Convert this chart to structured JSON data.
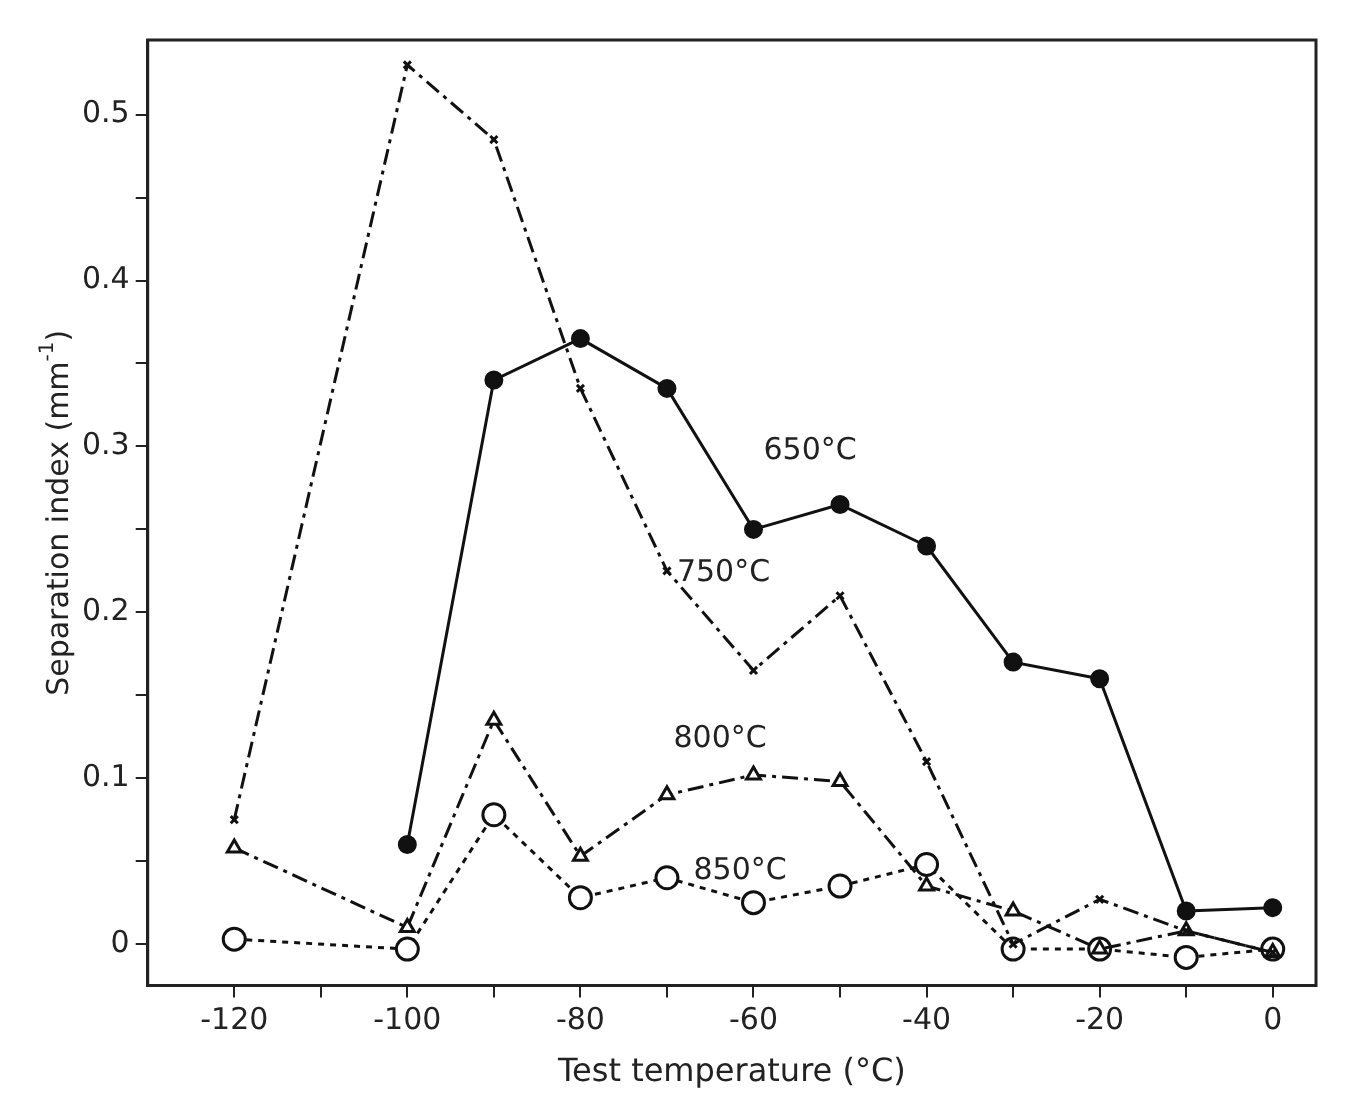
{
  "chart_data": {
    "type": "line",
    "xlabel": "Test temperature (°C)",
    "ylabel": "Separation index (mm$^{-1}$)",
    "x": [
      -120,
      -100,
      -90,
      -80,
      -70,
      -60,
      -50,
      -40,
      -30,
      -20,
      -10,
      0
    ],
    "series": [
      {
        "name": "650°C",
        "color": "#111111",
        "marker": "circle",
        "line_style": "solid",
        "values": [
          null,
          0.06,
          0.34,
          0.365,
          0.335,
          0.25,
          0.265,
          0.24,
          0.17,
          0.16,
          0.02,
          0.022
        ]
      },
      {
        "name": "750°C",
        "color": "#111111",
        "marker": "cross",
        "line_style": "dashed",
        "values": [
          0.075,
          0.53,
          0.485,
          0.335,
          0.225,
          0.165,
          0.21,
          0.11,
          0,
          0.027,
          0.008,
          -0.005
        ]
      },
      {
        "name": "800°C",
        "color": "#111111",
        "marker": "triangle",
        "line_style": "dashed",
        "values": [
          0.058,
          0.01,
          0.135,
          0.053,
          0.09,
          0.102,
          0.098,
          0.035,
          0.02,
          -0.003,
          0.008,
          -0.005
        ]
      },
      {
        "name": "850°C",
        "color": "#111111",
        "marker": "circle",
        "line_style": "dotted",
        "values": [
          0.003,
          -0.003,
          0.078,
          0.028,
          0.04,
          0.025,
          0.035,
          0.048,
          -0.003,
          -0.003,
          -0.008,
          -0.003
        ]
      }
    ],
    "xlim": [
      -130,
      5
    ],
    "xticks": [
      -120,
      {
        "value": -110,
        "label": null
      },
      -100,
      {
        "value": -90,
        "label": null
      },
      -80,
      {
        "value": -70,
        "label": null
      },
      -60,
      {
        "value": -50,
        "label": null
      },
      -40,
      {
        "value": -30,
        "label": null
      },
      -20,
      {
        "value": -10,
        "label": null
      },
      0
    ],
    "ylim": [
      -0.025,
      0.545
    ],
    "yticks": [
      0,
      {
        "value": 0.05,
        "label": null
      },
      0.1,
      {
        "value": 0.15,
        "label": null
      },
      0.2,
      {
        "value": 0.25,
        "label": null
      },
      0.3,
      {
        "value": 0.35,
        "label": null
      },
      0.4,
      {
        "value": 0.45,
        "label": null
      },
      0.5
    ],
    "grid": false,
    "legend": false
  }
}
